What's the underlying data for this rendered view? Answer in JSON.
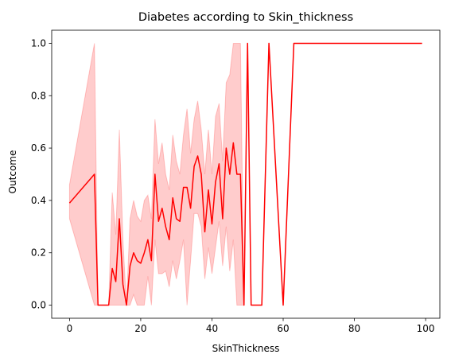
{
  "chart_data": {
    "type": "line",
    "title": "Diabetes according to Skin_thickness",
    "xlabel": "SkinThickness",
    "ylabel": "Outcome",
    "xlim": [
      -5,
      104
    ],
    "ylim": [
      -0.05,
      1.05
    ],
    "xticks": [
      0,
      20,
      40,
      60,
      80,
      100
    ],
    "yticks": [
      0.0,
      0.2,
      0.4,
      0.6,
      0.8,
      1.0
    ],
    "xtick_labels": [
      "0",
      "20",
      "40",
      "60",
      "80",
      "100"
    ],
    "ytick_labels": [
      "0.0",
      "0.2",
      "0.4",
      "0.6",
      "0.8",
      "1.0"
    ],
    "grid": false,
    "line_color": "#ff0000",
    "band_color": "#ff0000",
    "series": [
      {
        "x": [
          0,
          7,
          8,
          10,
          11,
          12,
          13,
          14,
          15,
          16,
          17,
          18,
          19,
          20,
          21,
          22,
          23,
          24,
          25,
          26,
          27,
          28,
          29,
          30,
          31,
          32,
          33,
          34,
          35,
          36,
          37,
          38,
          39,
          40,
          41,
          42,
          43,
          44,
          45,
          46,
          47,
          48,
          49,
          50,
          51,
          52,
          54,
          56,
          60,
          63,
          99
        ],
        "y": [
          0.39,
          0.5,
          0.0,
          0.0,
          0.0,
          0.14,
          0.09,
          0.33,
          0.08,
          0.0,
          0.15,
          0.2,
          0.17,
          0.16,
          0.2,
          0.25,
          0.17,
          0.5,
          0.32,
          0.37,
          0.3,
          0.25,
          0.41,
          0.33,
          0.32,
          0.45,
          0.45,
          0.37,
          0.53,
          0.57,
          0.5,
          0.28,
          0.44,
          0.31,
          0.47,
          0.54,
          0.33,
          0.6,
          0.5,
          0.62,
          0.5,
          0.5,
          0.0,
          1.0,
          0.0,
          0.0,
          0.0,
          1.0,
          0.0,
          1.0,
          1.0
        ],
        "ci_lower": [
          0.33,
          0.0,
          0.0,
          0.0,
          0.0,
          0.0,
          0.0,
          0.0,
          0.0,
          0.0,
          0.0,
          0.04,
          0.0,
          0.0,
          0.0,
          0.11,
          0.0,
          0.25,
          0.12,
          0.12,
          0.13,
          0.07,
          0.17,
          0.1,
          0.17,
          0.25,
          0.0,
          0.17,
          0.35,
          0.35,
          0.3,
          0.1,
          0.22,
          0.12,
          0.22,
          0.32,
          0.15,
          0.3,
          0.13,
          0.25,
          0.0,
          0.0,
          0.0,
          1.0,
          0.0,
          0.0,
          0.0,
          1.0,
          0.0,
          1.0,
          1.0
        ],
        "ci_upper": [
          0.46,
          1.0,
          0.0,
          0.0,
          0.0,
          0.43,
          0.27,
          0.67,
          0.25,
          0.0,
          0.33,
          0.4,
          0.34,
          0.32,
          0.4,
          0.42,
          0.33,
          0.71,
          0.54,
          0.62,
          0.5,
          0.44,
          0.65,
          0.55,
          0.5,
          0.65,
          0.75,
          0.58,
          0.71,
          0.78,
          0.67,
          0.5,
          0.67,
          0.5,
          0.72,
          0.77,
          0.55,
          0.85,
          0.88,
          1.0,
          1.0,
          1.0,
          0.0,
          1.0,
          0.0,
          0.0,
          0.0,
          1.0,
          0.0,
          1.0,
          1.0
        ]
      }
    ]
  }
}
